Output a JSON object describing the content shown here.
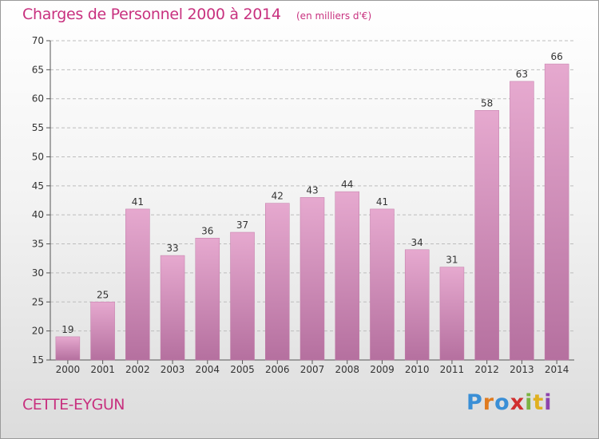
{
  "header": {
    "title": "Charges de Personnel 2000 à 2014",
    "subtitle": "(en milliers d'€)"
  },
  "footer": {
    "location": "CETTE-EYGUN",
    "logo": "Proxiti",
    "logo_colors": [
      "#3a8fd6",
      "#e07b1f",
      "#3a8fd6",
      "#d12f2f",
      "#7cb342",
      "#e0b020",
      "#8e44ad"
    ]
  },
  "colors": {
    "accent": "#c8317f",
    "bar_top": "#e6a9cf",
    "bar_bottom": "#b5709f",
    "grid": "#bdbdbd"
  },
  "chart_data": {
    "type": "bar",
    "categories": [
      "2000",
      "2001",
      "2002",
      "2003",
      "2004",
      "2005",
      "2006",
      "2007",
      "2008",
      "2009",
      "2010",
      "2011",
      "2012",
      "2013",
      "2014"
    ],
    "values": [
      19,
      25,
      41,
      33,
      36,
      37,
      42,
      43,
      44,
      41,
      34,
      31,
      58,
      63,
      66
    ],
    "title": "Charges de Personnel 2000 à 2014",
    "subtitle": "(en milliers d'€)",
    "xlabel": "",
    "ylabel": "",
    "ylim": [
      15,
      70
    ],
    "yticks": [
      15,
      20,
      25,
      30,
      35,
      40,
      45,
      50,
      55,
      60,
      65,
      70
    ],
    "grid": true,
    "data_labels": true
  }
}
